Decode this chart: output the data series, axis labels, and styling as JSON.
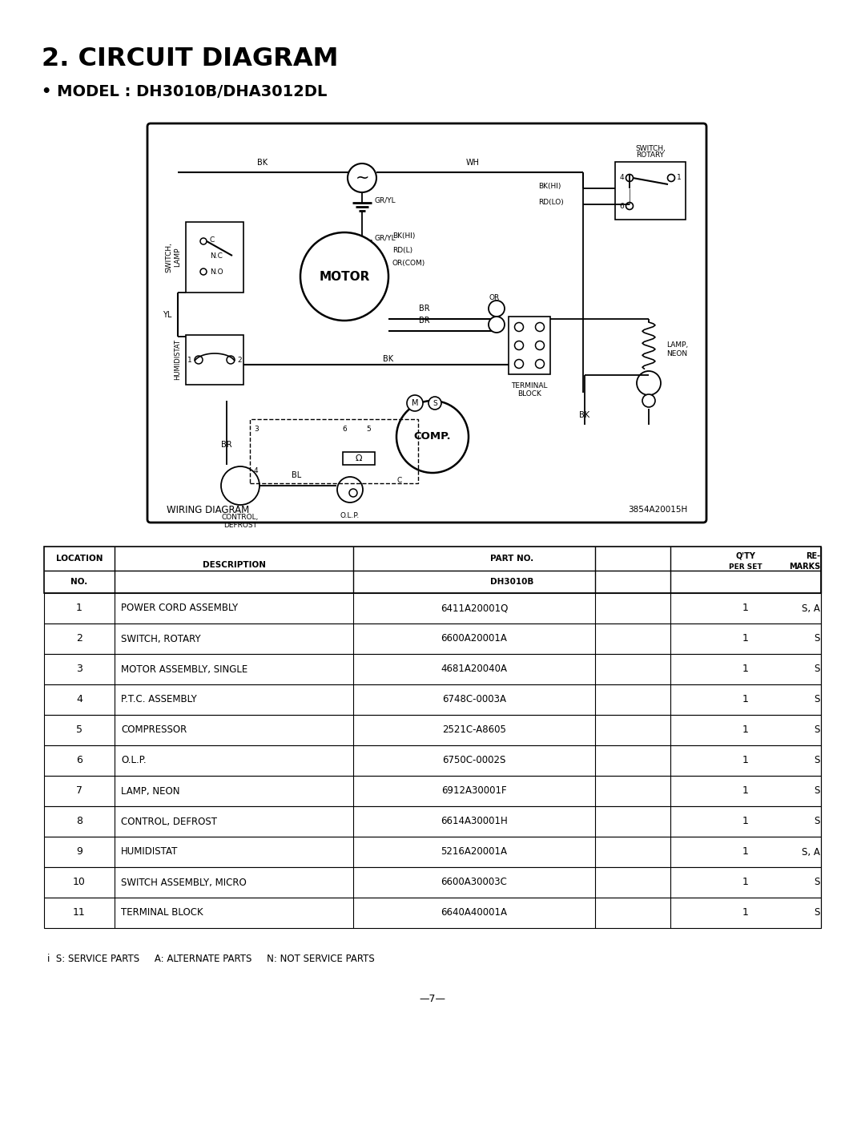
{
  "title": "2. CIRCUIT DIAGRAM",
  "subtitle": "• MODEL : DH3010B/DHA3012DL",
  "bg_color": "#ffffff",
  "table_rows": [
    [
      "1",
      "POWER CORD ASSEMBLY",
      "6411A20001Q",
      "1",
      "S, A"
    ],
    [
      "2",
      "SWITCH, ROTARY",
      "6600A20001A",
      "1",
      "S"
    ],
    [
      "3",
      "MOTOR ASSEMBLY, SINGLE",
      "4681A20040A",
      "1",
      "S"
    ],
    [
      "4",
      "P.T.C. ASSEMBLY",
      "6748C-0003A",
      "1",
      "S"
    ],
    [
      "5",
      "COMPRESSOR",
      "2521C-A8605",
      "1",
      "S"
    ],
    [
      "6",
      "O.L.P.",
      "6750C-0002S",
      "1",
      "S"
    ],
    [
      "7",
      "LAMP, NEON",
      "6912A30001F",
      "1",
      "S"
    ],
    [
      "8",
      "CONTROL, DEFROST",
      "6614A30001H",
      "1",
      "S"
    ],
    [
      "9",
      "HUMIDISTAT",
      "5216A20001A",
      "1",
      "S, A"
    ],
    [
      "10",
      "SWITCH ASSEMBLY, MICRO",
      "6600A30003C",
      "1",
      "S"
    ],
    [
      "11",
      "TERMINAL BLOCK",
      "6640A40001A",
      "1",
      "S"
    ]
  ],
  "footer_note": "i  S: SERVICE PARTS     A: ALTERNATE PARTS     N: NOT SERVICE PARTS",
  "page_number": "—7—",
  "wiring_diagram_label": "WIRING DIAGRAM",
  "wiring_diagram_ref": "3854A20015H"
}
